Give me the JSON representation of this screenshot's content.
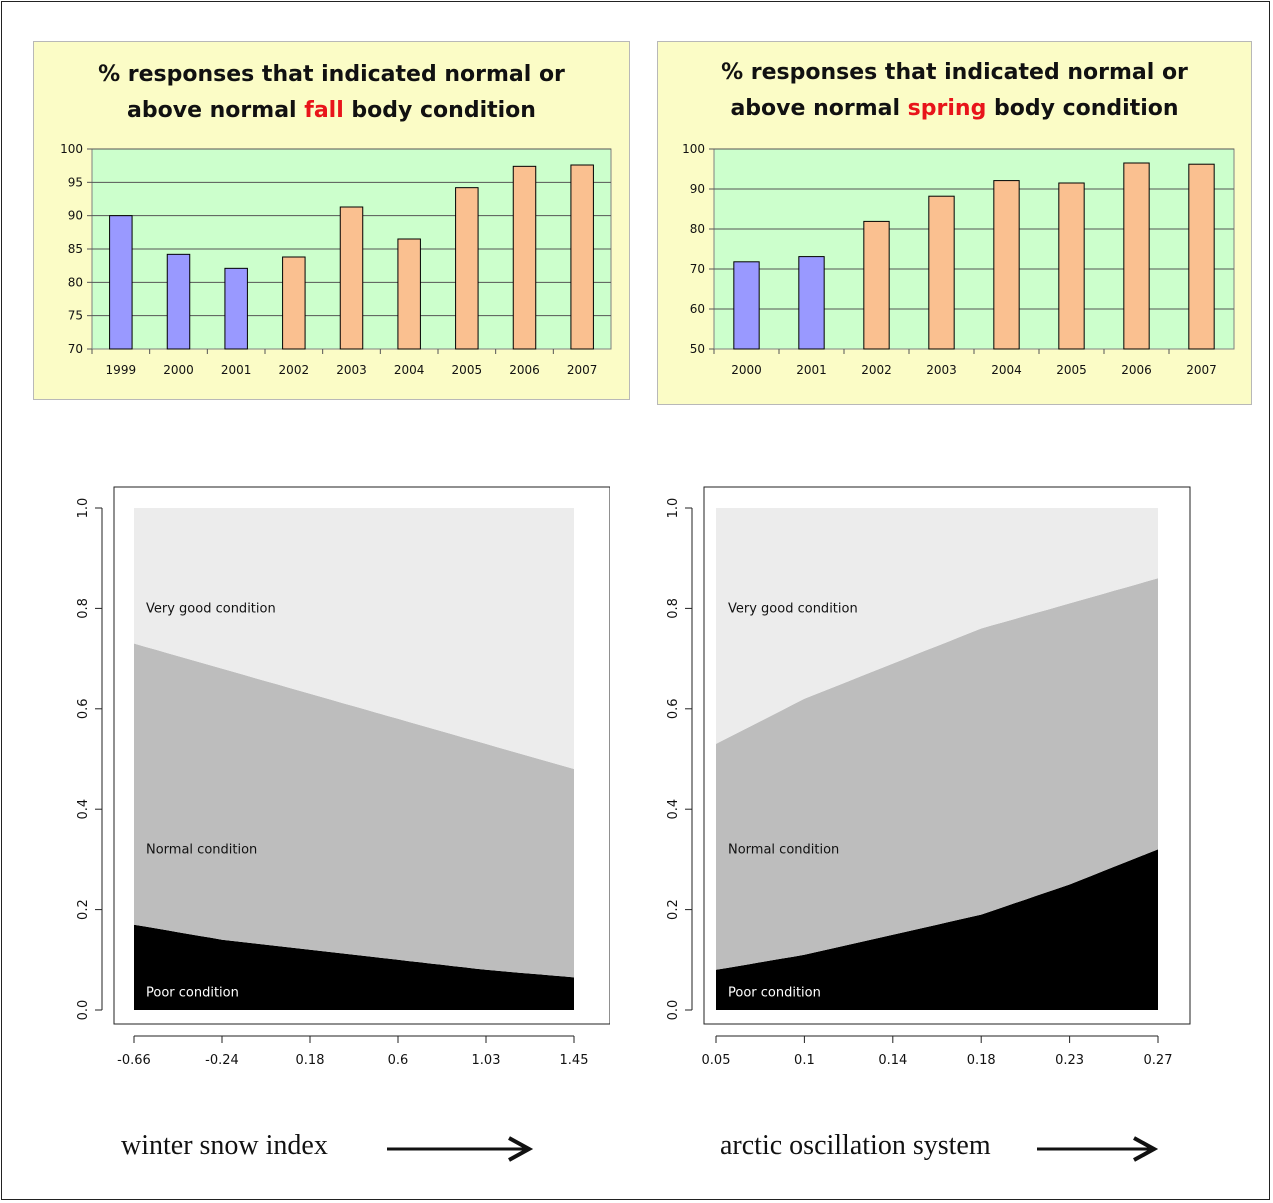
{
  "chart_data": [
    {
      "id": "fall",
      "type": "bar",
      "title_before": "% responses that indicated normal or",
      "title_line2_before": "above normal ",
      "title_highlight": "fall",
      "title_line2_after": " body condition",
      "categories": [
        "1999",
        "2000",
        "2001",
        "2002",
        "2003",
        "2004",
        "2005",
        "2006",
        "2007"
      ],
      "values": [
        90,
        84.2,
        82.1,
        83.8,
        91.3,
        86.5,
        94.2,
        97.4,
        97.6
      ],
      "bar_colors": [
        "#9999ff",
        "#9999ff",
        "#9999ff",
        "#fac090",
        "#fac090",
        "#fac090",
        "#fac090",
        "#fac090",
        "#fac090"
      ],
      "ylim": [
        70,
        100
      ],
      "yticks": [
        70,
        75,
        80,
        85,
        90,
        95,
        100
      ],
      "grid": true,
      "plot_background": "#ccffcc"
    },
    {
      "id": "spring",
      "type": "bar",
      "title_before": "% responses that indicated normal or",
      "title_line2_before": "above normal ",
      "title_highlight": "spring",
      "title_line2_after": " body condition",
      "categories": [
        "2000",
        "2001",
        "2002",
        "2003",
        "2004",
        "2005",
        "2006",
        "2007"
      ],
      "values": [
        71.8,
        73.1,
        81.9,
        88.2,
        92.1,
        91.5,
        96.5,
        96.2
      ],
      "bar_colors": [
        "#9999ff",
        "#9999ff",
        "#fac090",
        "#fac090",
        "#fac090",
        "#fac090",
        "#fac090",
        "#fac090"
      ],
      "ylim": [
        50,
        100
      ],
      "yticks": [
        50,
        60,
        70,
        80,
        90,
        100
      ],
      "grid": true,
      "plot_background": "#ccffcc"
    },
    {
      "id": "snow",
      "type": "area",
      "xlabel": "winter snow index",
      "x": [
        -0.66,
        -0.24,
        0.18,
        0.6,
        1.03,
        1.45
      ],
      "xtick_labels": [
        "-0.66",
        "-0.24",
        "0.18",
        "0.6",
        "1.03",
        "1.45"
      ],
      "ylim": [
        0,
        1
      ],
      "ytick_labels": [
        "0.0",
        "0.2",
        "0.4",
        "0.6",
        "0.8",
        "1.0"
      ],
      "series": [
        {
          "name": "Poor condition",
          "upper": [
            0.17,
            0.14,
            0.12,
            0.1,
            0.08,
            0.065
          ],
          "color": "#000000"
        },
        {
          "name": "Normal condition",
          "upper": [
            0.73,
            0.68,
            0.63,
            0.58,
            0.53,
            0.48
          ],
          "color": "#bdbdbd"
        },
        {
          "name": "Very good condition",
          "upper": [
            1.0,
            1.0,
            1.0,
            1.0,
            1.0,
            1.0
          ],
          "color": "#ececec"
        }
      ],
      "label_positions": [
        "bottom",
        "middle",
        "top"
      ],
      "label_y": [
        0.035,
        0.32,
        0.8
      ]
    },
    {
      "id": "arctic",
      "type": "area",
      "xlabel": "arctic oscillation system",
      "x": [
        0.05,
        0.1,
        0.14,
        0.18,
        0.23,
        0.27
      ],
      "xtick_labels": [
        "0.05",
        "0.1",
        "0.14",
        "0.18",
        "0.23",
        "0.27"
      ],
      "ylim": [
        0,
        1
      ],
      "ytick_labels": [
        "0.0",
        "0.2",
        "0.4",
        "0.6",
        "0.8",
        "1.0"
      ],
      "series": [
        {
          "name": "Poor condition",
          "upper": [
            0.08,
            0.11,
            0.15,
            0.19,
            0.25,
            0.32
          ],
          "color": "#000000"
        },
        {
          "name": "Normal condition",
          "upper": [
            0.53,
            0.62,
            0.69,
            0.76,
            0.81,
            0.86
          ],
          "color": "#bdbdbd"
        },
        {
          "name": "Very good condition",
          "upper": [
            1.0,
            1.0,
            1.0,
            1.0,
            1.0,
            1.0
          ],
          "color": "#ececec"
        }
      ],
      "label_y": [
        0.035,
        0.32,
        0.8
      ]
    }
  ],
  "captions": {
    "snow": "winter snow index",
    "arctic": "arctic oscillation system"
  },
  "colors": {
    "panel_bg": "#fbfcc6",
    "highlight": "#e8141a"
  }
}
